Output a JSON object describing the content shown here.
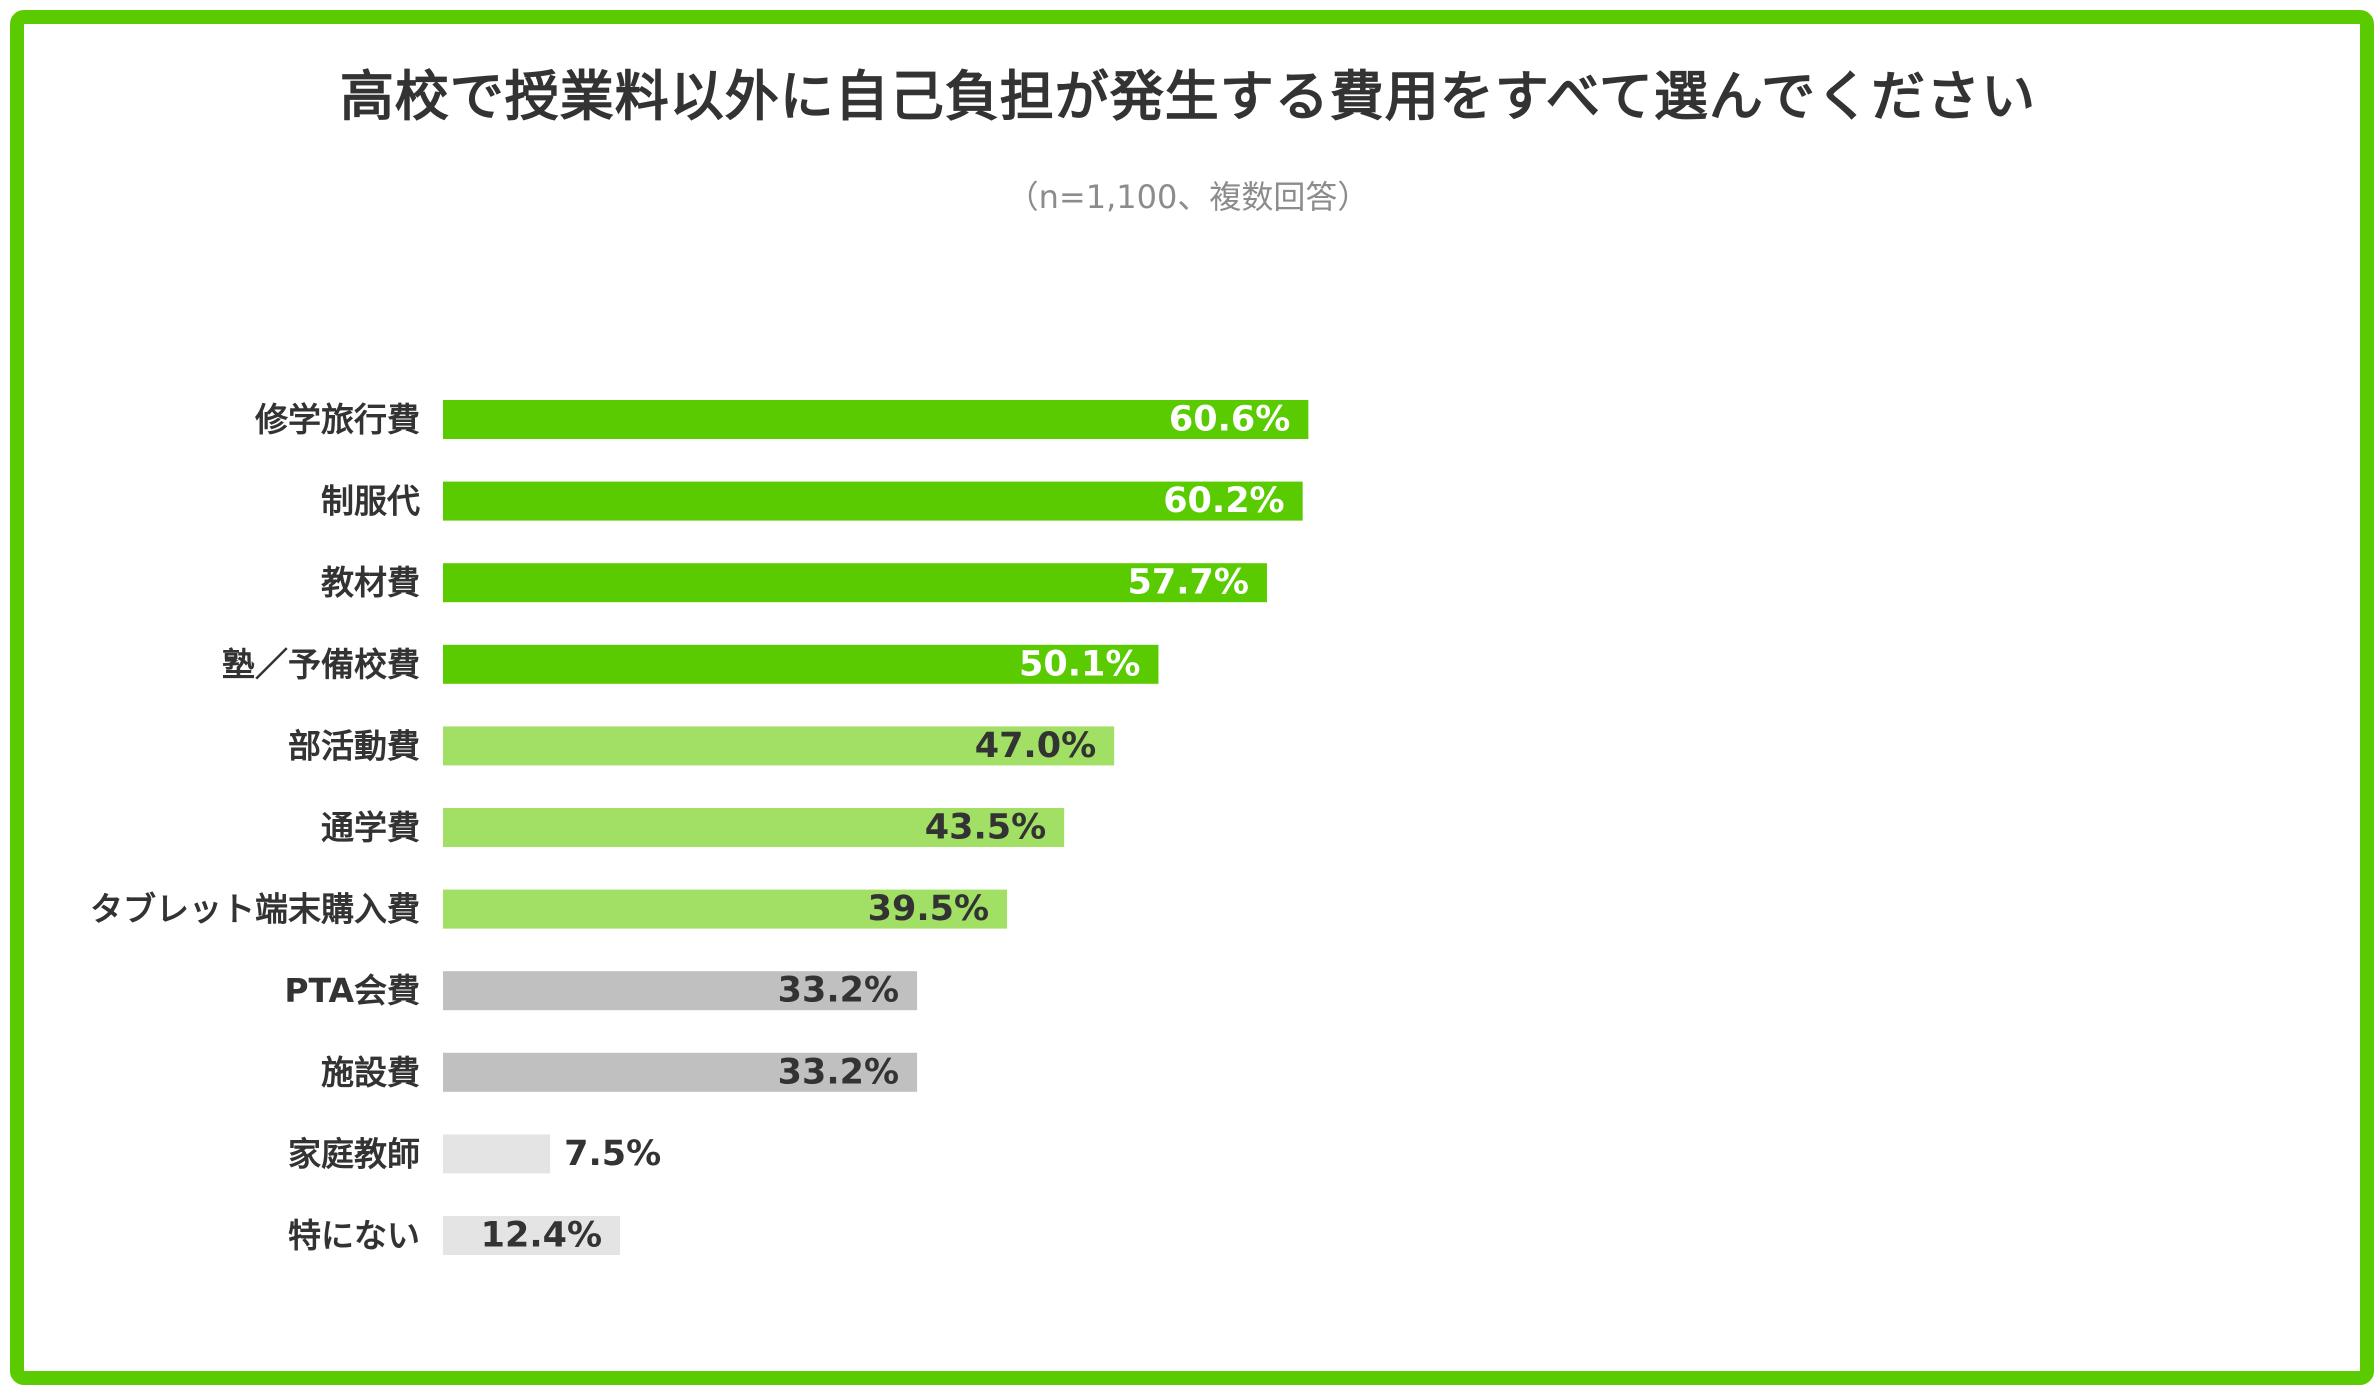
{
  "chart_data": {
    "type": "bar",
    "orientation": "horizontal",
    "title": "高校で授業料以外に自己負担が発生する費用をすべて選んでください",
    "subtitle": "（n=1,100、複数回答）",
    "categories": [
      "修学旅行費",
      "制服代",
      "教材費",
      "塾／予備校費",
      "部活動費",
      "通学費",
      "タブレット端末購入費",
      "PTA会費",
      "施設費",
      "家庭教師",
      "特にない"
    ],
    "values": [
      60.6,
      60.2,
      57.7,
      50.1,
      47.0,
      43.5,
      39.5,
      33.2,
      33.2,
      7.5,
      12.4
    ],
    "value_labels": [
      "60.6%",
      "60.2%",
      "57.7%",
      "50.1%",
      "47.0%",
      "43.5%",
      "39.5%",
      "33.2%",
      "33.2%",
      "7.5%",
      "12.4%"
    ],
    "unit": "%",
    "xlim": [
      0,
      100
    ],
    "grid": false,
    "legend": "none",
    "bar_colors": [
      "#59cb00",
      "#59cb00",
      "#59cb00",
      "#59cb00",
      "#a1e065",
      "#a1e065",
      "#a1e065",
      "#c0c0c0",
      "#c0c0c0",
      "#e4e4e4",
      "#e4e4e4"
    ],
    "label_colors": [
      "#ffffff",
      "#ffffff",
      "#ffffff",
      "#ffffff",
      "#333333",
      "#333333",
      "#333333",
      "#333333",
      "#333333",
      "#333333",
      "#333333"
    ],
    "frame_color": "#59cb00"
  }
}
